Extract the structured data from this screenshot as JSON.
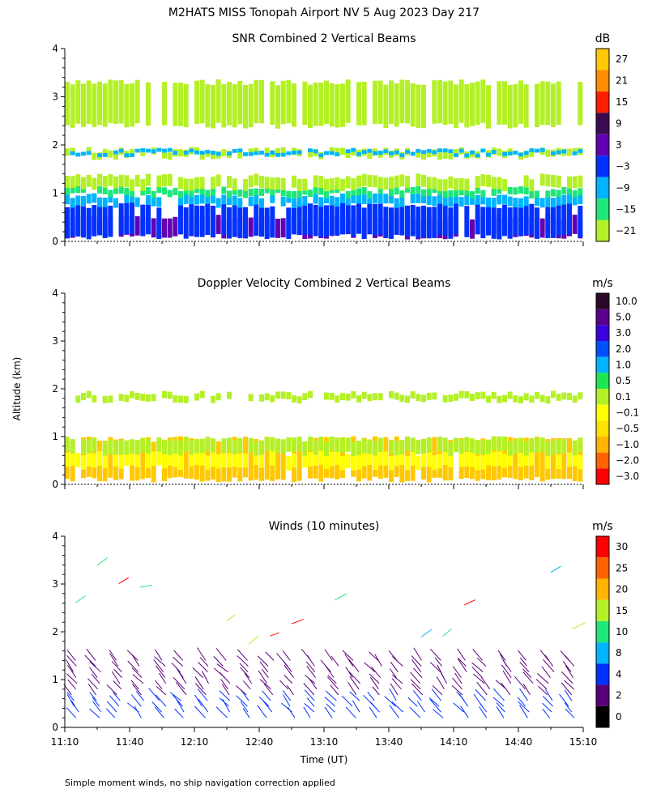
{
  "header": {
    "title": "M2HATS MISS Tonopah Airport NV   5 Aug 2023 Day 217",
    "shared_ylabel": "Altitude (km)",
    "xlabel": "Time (UT)",
    "footnote": "Simple moment winds, no ship navigation correction applied"
  },
  "chart_data": [
    {
      "type": "heatmap",
      "id": "snr",
      "title": "SNR Combined 2 Vertical Beams",
      "ylim": [
        0,
        4
      ],
      "yticks": [
        "0",
        "1",
        "2",
        "3",
        "4"
      ],
      "xlim_minutes": [
        0,
        240
      ],
      "colorbar_unit": "dB",
      "colorbar_labels": [
        "27",
        "21",
        "15",
        "9",
        "3",
        "−3",
        "−9",
        "−15",
        "−21"
      ],
      "colors": [
        "#ffc800",
        "#ff8c00",
        "#ff1e00",
        "#3c0a50",
        "#6400b4",
        "#0032ff",
        "#00b4ff",
        "#1ee678",
        "#b4f028"
      ],
      "layers": [
        {
          "from": 0.1,
          "to": 0.5,
          "color": "#6400b4"
        },
        {
          "from": 0.1,
          "to": 0.75,
          "color": "#0032ff"
        },
        {
          "from": 0.75,
          "to": 0.95,
          "color": "#00b4ff"
        },
        {
          "from": 0.95,
          "to": 1.1,
          "color": "#1ee678"
        },
        {
          "from": 1.1,
          "to": 1.35,
          "color": "#b4f028"
        },
        {
          "from": 1.75,
          "to": 1.9,
          "color": "#b4f028"
        },
        {
          "from": 1.8,
          "to": 1.88,
          "color": "#00b4ff"
        },
        {
          "from": 2.4,
          "to": 3.3,
          "color": "#b4f028"
        }
      ]
    },
    {
      "type": "heatmap",
      "id": "vel",
      "title": "Doppler Velocity Combined 2 Vertical Beams",
      "ylim": [
        0,
        4
      ],
      "yticks": [
        "0",
        "1",
        "2",
        "3",
        "4"
      ],
      "xlim_minutes": [
        0,
        240
      ],
      "colorbar_unit": "m/s",
      "colorbar_labels": [
        "10.0",
        "5.0",
        "3.0",
        "2.0",
        "1.0",
        "0.5",
        "0.1",
        "−0.1",
        "−0.5",
        "−1.0",
        "−2.0",
        "−3.0"
      ],
      "colors": [
        "#280a28",
        "#5a008c",
        "#3c00dc",
        "#0050ff",
        "#00b4ff",
        "#1ee650",
        "#b4f028",
        "#ffff00",
        "#ffe100",
        "#ffb400",
        "#ff6400",
        "#ff0000"
      ],
      "layers": [
        {
          "from": 0.1,
          "to": 0.95,
          "color": "#ffc800"
        },
        {
          "from": 0.35,
          "to": 0.65,
          "color": "#ffff00"
        },
        {
          "from": 0.65,
          "to": 0.95,
          "color": "#b4f028"
        },
        {
          "from": 1.75,
          "to": 1.9,
          "color": "#b4f028"
        }
      ]
    },
    {
      "type": "scatter",
      "id": "winds",
      "title": "Winds (10 minutes)",
      "ylim": [
        0,
        4
      ],
      "yticks": [
        "0",
        "1",
        "2",
        "3",
        "4"
      ],
      "xlim_minutes": [
        0,
        240
      ],
      "xticks": [
        "11:10",
        "11:40",
        "12:10",
        "12:40",
        "13:10",
        "13:40",
        "14:10",
        "14:40",
        "15:10"
      ],
      "colorbar_unit": "m/s",
      "colorbar_labels": [
        "30",
        "25",
        "20",
        "15",
        "10",
        "8",
        "4",
        "2",
        "0"
      ],
      "colors": [
        "#ff0000",
        "#ff6400",
        "#ffb400",
        "#b4f028",
        "#1ee678",
        "#00b4ff",
        "#0032ff",
        "#5a0078",
        "#000000"
      ],
      "barb_times_minutes": [
        5,
        15,
        25,
        35,
        45,
        55,
        65,
        75,
        85,
        95,
        105,
        115,
        125,
        135,
        145,
        155,
        165,
        175,
        185,
        195,
        205,
        215,
        225,
        235
      ]
    }
  ]
}
